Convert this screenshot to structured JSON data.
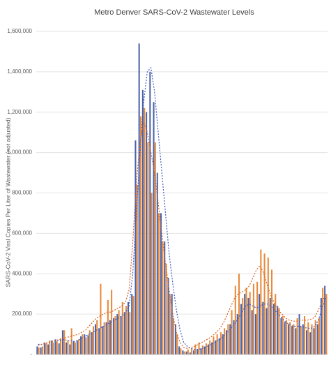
{
  "chart_data": {
    "type": "bar",
    "title": "Metro Denver SARS-CoV-2 Wastewater Levels",
    "y_label": "SARS-CoV-2 Viral Copies Per Liter of Wastewater (not adjusted)",
    "categories": [
      null,
      null,
      null,
      null,
      null,
      null,
      null,
      null,
      null,
      null,
      null,
      null,
      null,
      null,
      null,
      null,
      null,
      null,
      null,
      null,
      null,
      null,
      null,
      null,
      null,
      null,
      null,
      null,
      null,
      null,
      null,
      null,
      null,
      null,
      null,
      null,
      null,
      null,
      null,
      null,
      null,
      null,
      null,
      null,
      null,
      null,
      null,
      null,
      null,
      null,
      null,
      null,
      null,
      null,
      null,
      null,
      null,
      null,
      null,
      null,
      null,
      null,
      null,
      null,
      null,
      null,
      null,
      null,
      null,
      null,
      null,
      null,
      null,
      null,
      null,
      null,
      null,
      null,
      null,
      null
    ],
    "ylim": [
      0,
      1600000
    ],
    "yticks": [
      {
        "value": 0,
        "label": "-"
      },
      {
        "value": 200000,
        "label": "200,000"
      },
      {
        "value": 400000,
        "label": "400,000"
      },
      {
        "value": 600000,
        "label": "600,000"
      },
      {
        "value": 800000,
        "label": "800,000"
      },
      {
        "value": 1000000,
        "label": "1,000,000"
      },
      {
        "value": 1200000,
        "label": "1,200,000"
      },
      {
        "value": 1400000,
        "label": "1,400,000"
      },
      {
        "value": 1600000,
        "label": "1,600,000"
      }
    ],
    "grid": true,
    "series": [
      {
        "type": "bar",
        "color": "#4a63a8",
        "values": [
          40000,
          35000,
          60000,
          50000,
          70000,
          75000,
          55000,
          120000,
          60000,
          50000,
          65000,
          70000,
          90000,
          100000,
          95000,
          110000,
          150000,
          130000,
          140000,
          160000,
          170000,
          180000,
          200000,
          190000,
          210000,
          260000,
          300000,
          1060000,
          1540000,
          1310000,
          1200000,
          1400000,
          1250000,
          900000,
          700000,
          560000,
          380000,
          300000,
          150000,
          40000,
          20000,
          15000,
          10000,
          20000,
          25000,
          30000,
          40000,
          50000,
          60000,
          70000,
          80000,
          100000,
          120000,
          150000,
          170000,
          200000,
          250000,
          300000,
          280000,
          220000,
          200000,
          300000,
          260000,
          230000,
          280000,
          250000,
          240000,
          180000,
          160000,
          150000,
          140000,
          130000,
          200000,
          150000,
          120000,
          110000,
          130000,
          150000,
          280000,
          340000
        ]
      },
      {
        "type": "bar",
        "color": "#e8893a",
        "values": [
          35000,
          40000,
          55000,
          70000,
          60000,
          65000,
          80000,
          120000,
          70000,
          130000,
          60000,
          75000,
          100000,
          85000,
          120000,
          140000,
          170000,
          350000,
          160000,
          270000,
          320000,
          190000,
          220000,
          260000,
          240000,
          210000,
          290000,
          840000,
          1180000,
          1220000,
          1050000,
          800000,
          1050000,
          700000,
          560000,
          450000,
          300000,
          180000,
          100000,
          30000,
          15000,
          25000,
          30000,
          50000,
          60000,
          45000,
          55000,
          70000,
          90000,
          100000,
          110000,
          130000,
          150000,
          220000,
          340000,
          400000,
          280000,
          330000,
          310000,
          350000,
          360000,
          520000,
          500000,
          480000,
          420000,
          300000,
          230000,
          190000,
          170000,
          160000,
          150000,
          180000,
          140000,
          190000,
          160000,
          150000,
          170000,
          180000,
          330000,
          300000
        ]
      },
      {
        "type": "line",
        "dash": "2,2",
        "color": "#3f5cc0",
        "values": [
          50000,
          50000,
          55000,
          60000,
          65000,
          70000,
          70000,
          75000,
          70000,
          68000,
          65000,
          70000,
          80000,
          90000,
          100000,
          110000,
          120000,
          130000,
          140000,
          150000,
          160000,
          170000,
          180000,
          190000,
          210000,
          240000,
          400000,
          700000,
          1000000,
          1250000,
          1400000,
          1420000,
          1300000,
          1100000,
          900000,
          700000,
          500000,
          350000,
          220000,
          120000,
          60000,
          40000,
          30000,
          25000,
          25000,
          30000,
          35000,
          45000,
          55000,
          65000,
          75000,
          90000,
          110000,
          130000,
          150000,
          180000,
          210000,
          240000,
          250000,
          240000,
          230000,
          240000,
          250000,
          250000,
          240000,
          220000,
          200000,
          180000,
          160000,
          150000,
          140000,
          140000,
          140000,
          135000,
          130000,
          130000,
          140000,
          170000,
          230000,
          280000
        ]
      },
      {
        "type": "line",
        "dash": "2,2",
        "color": "#d9601e",
        "values": [
          45000,
          50000,
          55000,
          60000,
          65000,
          70000,
          75000,
          80000,
          85000,
          90000,
          95000,
          100000,
          110000,
          120000,
          140000,
          160000,
          180000,
          190000,
          200000,
          210000,
          210000,
          220000,
          230000,
          240000,
          260000,
          320000,
          550000,
          850000,
          1050000,
          1150000,
          1100000,
          1000000,
          900000,
          750000,
          600000,
          450000,
          320000,
          200000,
          110000,
          60000,
          35000,
          30000,
          35000,
          40000,
          50000,
          60000,
          70000,
          80000,
          95000,
          110000,
          130000,
          160000,
          200000,
          240000,
          280000,
          300000,
          310000,
          320000,
          340000,
          380000,
          420000,
          440000,
          400000,
          340000,
          290000,
          250000,
          220000,
          200000,
          180000,
          170000,
          165000,
          165000,
          170000,
          170000,
          170000,
          175000,
          185000,
          220000,
          260000,
          300000
        ]
      }
    ]
  }
}
